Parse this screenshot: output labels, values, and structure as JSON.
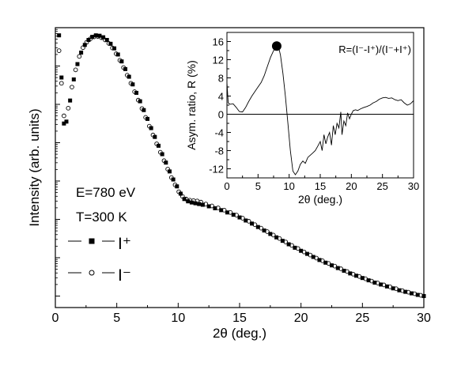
{
  "chart_data": [
    {
      "type": "scatter",
      "xlabel": "2θ (deg.)",
      "ylabel": "Intensity (arb. units)",
      "xlim": [
        0,
        30
      ],
      "x_ticks": [
        "0",
        "5",
        "10",
        "15",
        "20",
        "25",
        "30"
      ],
      "yscale": "log",
      "y_tick_labels_shown": false,
      "grid": false,
      "annotations": [
        "E=780 eV",
        "T=300 K"
      ],
      "legend_placement": "left",
      "series": [
        {
          "name": "I⁺",
          "marker": "filled-square",
          "points": [
            [
              0.05,
              5.5
            ],
            [
              0.3,
              3.8
            ],
            [
              0.5,
              2.7
            ],
            [
              0.7,
              1.5
            ],
            [
              0.9,
              1.55
            ],
            [
              1.2,
              2.1
            ],
            [
              1.5,
              2.65
            ],
            [
              1.8,
              3.05
            ],
            [
              2.1,
              3.35
            ],
            [
              2.4,
              3.55
            ],
            [
              2.7,
              3.68
            ],
            [
              3.0,
              3.76
            ],
            [
              3.3,
              3.8
            ],
            [
              3.6,
              3.79
            ],
            [
              3.9,
              3.75
            ],
            [
              4.2,
              3.68
            ],
            [
              4.5,
              3.58
            ],
            [
              4.8,
              3.46
            ],
            [
              5.1,
              3.3
            ],
            [
              5.4,
              3.12
            ],
            [
              5.7,
              2.92
            ],
            [
              6.0,
              2.72
            ],
            [
              6.3,
              2.52
            ],
            [
              6.6,
              2.3
            ],
            [
              6.9,
              2.08
            ],
            [
              7.2,
              1.85
            ],
            [
              7.5,
              1.62
            ],
            [
              7.8,
              1.38
            ],
            [
              8.1,
              1.15
            ],
            [
              8.4,
              0.92
            ],
            [
              8.7,
              0.7
            ],
            [
              9.0,
              0.48
            ],
            [
              9.3,
              0.25
            ],
            [
              9.6,
              0.04
            ],
            [
              9.9,
              -0.14
            ],
            [
              10.2,
              -0.33
            ],
            [
              10.5,
              -0.47
            ],
            [
              10.8,
              -0.53
            ],
            [
              11.1,
              -0.56
            ],
            [
              11.4,
              -0.58
            ],
            [
              11.7,
              -0.6
            ],
            [
              12.0,
              -0.62
            ],
            [
              12.5,
              -0.66
            ],
            [
              13.0,
              -0.71
            ],
            [
              13.5,
              -0.76
            ],
            [
              14.0,
              -0.82
            ],
            [
              14.5,
              -0.88
            ],
            [
              15.0,
              -0.95
            ],
            [
              15.5,
              -1.03
            ],
            [
              16.0,
              -1.11
            ],
            [
              16.5,
              -1.2
            ],
            [
              17.0,
              -1.29
            ],
            [
              17.5,
              -1.38
            ],
            [
              18.0,
              -1.47
            ],
            [
              18.5,
              -1.56
            ],
            [
              19.0,
              -1.65
            ],
            [
              19.5,
              -1.74
            ],
            [
              20.0,
              -1.82
            ],
            [
              20.5,
              -1.9
            ],
            [
              21.0,
              -1.98
            ],
            [
              21.5,
              -2.06
            ],
            [
              22.0,
              -2.13
            ],
            [
              22.5,
              -2.2
            ],
            [
              23.0,
              -2.27
            ],
            [
              23.5,
              -2.34
            ],
            [
              24.0,
              -2.41
            ],
            [
              24.5,
              -2.47
            ],
            [
              25.0,
              -2.53
            ],
            [
              25.5,
              -2.59
            ],
            [
              26.0,
              -2.65
            ],
            [
              26.5,
              -2.7
            ],
            [
              27.0,
              -2.75
            ],
            [
              27.5,
              -2.8
            ],
            [
              28.0,
              -2.85
            ],
            [
              28.5,
              -2.89
            ],
            [
              29.0,
              -2.93
            ],
            [
              29.5,
              -2.97
            ],
            [
              30.0,
              -3.0
            ]
          ]
        },
        {
          "name": "I⁻",
          "marker": "open-circle",
          "points": [
            [
              0.3,
              3.4
            ],
            [
              0.5,
              2.55
            ],
            [
              0.7,
              1.7
            ],
            [
              1.05,
              1.9
            ],
            [
              1.35,
              2.45
            ],
            [
              1.65,
              2.9
            ],
            [
              1.95,
              3.25
            ],
            [
              2.25,
              3.48
            ],
            [
              2.55,
              3.62
            ],
            [
              2.85,
              3.71
            ],
            [
              3.15,
              3.76
            ],
            [
              3.45,
              3.77
            ],
            [
              3.75,
              3.74
            ],
            [
              4.05,
              3.68
            ],
            [
              4.35,
              3.59
            ],
            [
              4.65,
              3.47
            ],
            [
              4.95,
              3.32
            ],
            [
              5.25,
              3.15
            ],
            [
              5.55,
              2.96
            ],
            [
              5.85,
              2.76
            ],
            [
              6.15,
              2.55
            ],
            [
              6.45,
              2.33
            ],
            [
              6.75,
              2.11
            ],
            [
              7.05,
              1.89
            ],
            [
              7.35,
              1.66
            ],
            [
              7.65,
              1.43
            ],
            [
              7.95,
              1.2
            ],
            [
              8.25,
              0.97
            ],
            [
              8.55,
              0.75
            ],
            [
              8.85,
              0.53
            ],
            [
              9.15,
              0.31
            ],
            [
              9.45,
              0.09
            ],
            [
              9.75,
              -0.1
            ],
            [
              10.05,
              -0.28
            ],
            [
              10.35,
              -0.4
            ],
            [
              10.65,
              -0.47
            ],
            [
              10.95,
              -0.5
            ],
            [
              11.25,
              -0.51
            ],
            [
              11.55,
              -0.52
            ],
            [
              11.85,
              -0.55
            ],
            [
              12.25,
              -0.6
            ],
            [
              12.75,
              -0.65
            ],
            [
              13.25,
              -0.7
            ],
            [
              13.75,
              -0.76
            ],
            [
              14.25,
              -0.82
            ],
            [
              14.75,
              -0.89
            ],
            [
              15.25,
              -0.97
            ],
            [
              15.75,
              -1.05
            ],
            [
              16.25,
              -1.14
            ],
            [
              16.75,
              -1.23
            ],
            [
              17.25,
              -1.32
            ],
            [
              17.75,
              -1.41
            ],
            [
              18.25,
              -1.5
            ],
            [
              18.75,
              -1.59
            ],
            [
              19.25,
              -1.68
            ],
            [
              19.75,
              -1.76
            ],
            [
              20.25,
              -1.85
            ],
            [
              20.75,
              -1.93
            ],
            [
              21.25,
              -2.01
            ],
            [
              21.75,
              -2.08
            ],
            [
              22.25,
              -2.15
            ],
            [
              22.75,
              -2.22
            ],
            [
              23.25,
              -2.29
            ],
            [
              23.75,
              -2.36
            ],
            [
              24.25,
              -2.43
            ],
            [
              24.75,
              -2.49
            ],
            [
              25.25,
              -2.55
            ],
            [
              25.75,
              -2.61
            ],
            [
              26.25,
              -2.66
            ],
            [
              26.75,
              -2.71
            ],
            [
              27.25,
              -2.76
            ],
            [
              27.75,
              -2.81
            ],
            [
              28.25,
              -2.86
            ],
            [
              28.75,
              -2.9
            ],
            [
              29.25,
              -2.94
            ],
            [
              29.75,
              -2.98
            ]
          ]
        }
      ]
    },
    {
      "type": "line",
      "title": "R=(I⁻-I⁺)/(I⁻+I⁺)",
      "xlabel": "2θ (deg.)",
      "ylabel": "Asym. ratio, R (%)",
      "xlim": [
        0,
        30
      ],
      "ylim": [
        -14,
        18
      ],
      "x_ticks": [
        "0",
        "5",
        "10",
        "15",
        "20",
        "25",
        "30"
      ],
      "y_ticks": [
        "-12",
        "-8",
        "-4",
        "0",
        "4",
        "8",
        "12",
        "16"
      ],
      "zero_line": true,
      "highlight_point": [
        8,
        15
      ],
      "series": [
        {
          "points": [
            [
              0,
              7
            ],
            [
              0.2,
              2.5
            ],
            [
              0.5,
              2.2
            ],
            [
              1.0,
              2.3
            ],
            [
              1.5,
              1.5
            ],
            [
              2.0,
              0.6
            ],
            [
              2.5,
              0.5
            ],
            [
              3.0,
              1.5
            ],
            [
              3.5,
              2.8
            ],
            [
              4.0,
              4.0
            ],
            [
              4.5,
              5.0
            ],
            [
              5.0,
              6.0
            ],
            [
              5.5,
              7.0
            ],
            [
              6.0,
              8.5
            ],
            [
              6.5,
              10.5
            ],
            [
              7.0,
              12.5
            ],
            [
              7.5,
              14.0
            ],
            [
              8.0,
              15.0
            ],
            [
              8.3,
              14.8
            ],
            [
              8.6,
              13.0
            ],
            [
              9.0,
              9.0
            ],
            [
              9.4,
              4.0
            ],
            [
              9.8,
              -2.0
            ],
            [
              10.2,
              -8.0
            ],
            [
              10.6,
              -12.5
            ],
            [
              11.0,
              -13.3
            ],
            [
              11.4,
              -12.5
            ],
            [
              11.8,
              -11.0
            ],
            [
              12.2,
              -10.3
            ],
            [
              12.6,
              -10.8
            ],
            [
              13.0,
              -9.5
            ],
            [
              13.4,
              -9.0
            ],
            [
              13.8,
              -8.5
            ],
            [
              14.2,
              -8.0
            ],
            [
              14.6,
              -7.0
            ],
            [
              15.0,
              -6.0
            ],
            [
              15.3,
              -8.0
            ],
            [
              15.6,
              -4.5
            ],
            [
              15.9,
              -6.5
            ],
            [
              16.2,
              -5.0
            ],
            [
              16.5,
              -4.0
            ],
            [
              16.8,
              -6.8
            ],
            [
              17.1,
              -2.5
            ],
            [
              17.4,
              -4.5
            ],
            [
              17.7,
              -2.0
            ],
            [
              18.0,
              -3.0
            ],
            [
              18.3,
              0.5
            ],
            [
              18.5,
              -4.5
            ],
            [
              18.8,
              -1.5
            ],
            [
              19.1,
              -2.5
            ],
            [
              19.4,
              0.3
            ],
            [
              19.7,
              -1.0
            ],
            [
              20.0,
              0.0
            ],
            [
              20.3,
              0.8
            ],
            [
              20.7,
              1.0
            ],
            [
              21.0,
              0.8
            ],
            [
              21.5,
              1.2
            ],
            [
              22.0,
              1.5
            ],
            [
              22.5,
              1.7
            ],
            [
              23.0,
              2.0
            ],
            [
              23.5,
              2.5
            ],
            [
              24.0,
              2.8
            ],
            [
              24.5,
              3.3
            ],
            [
              25.0,
              3.6
            ],
            [
              25.5,
              3.7
            ],
            [
              26.0,
              3.5
            ],
            [
              26.5,
              3.6
            ],
            [
              27.0,
              3.2
            ],
            [
              27.5,
              3.0
            ],
            [
              28.0,
              3.2
            ],
            [
              28.5,
              2.5
            ],
            [
              29.0,
              2.0
            ],
            [
              29.5,
              2.3
            ],
            [
              30.0,
              3.0
            ]
          ]
        }
      ]
    }
  ]
}
